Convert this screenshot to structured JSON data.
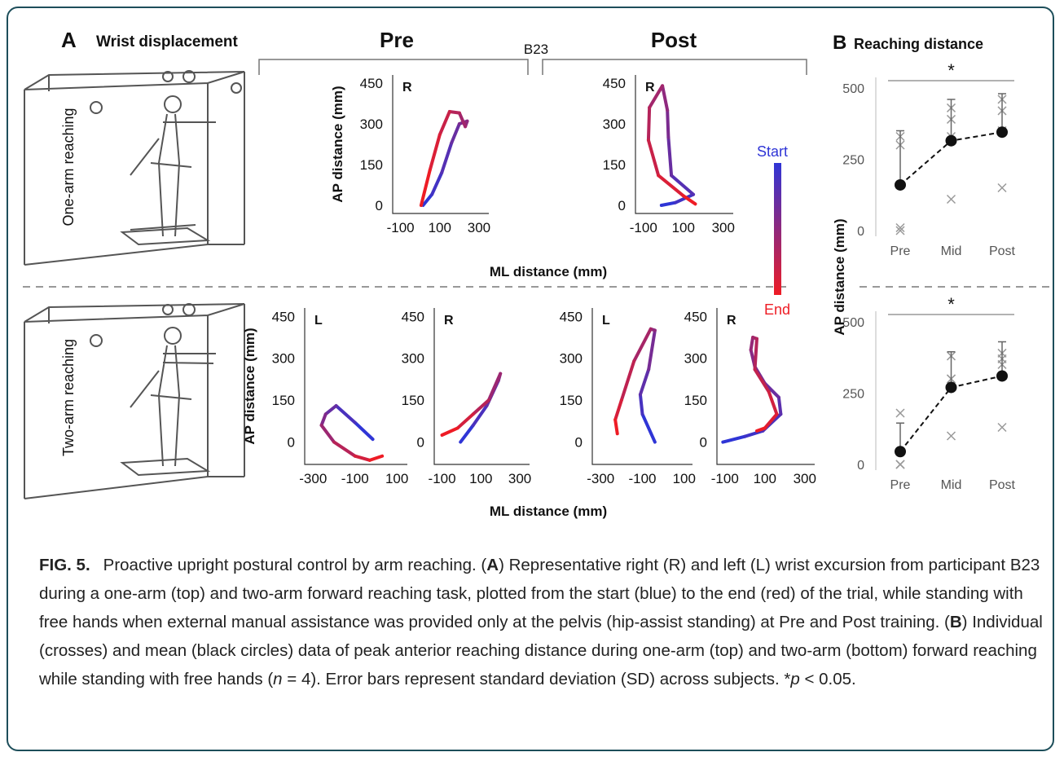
{
  "figure": {
    "panel_a": {
      "letter": "A",
      "title": "Wrist displacement",
      "pre": "Pre",
      "participant": "B23",
      "post": "Post",
      "rows": [
        {
          "label": "One-arm reaching",
          "xlabel": "ML distance (mm)"
        },
        {
          "label": "Two-arm reaching",
          "xlabel": "ML distance (mm)"
        }
      ],
      "legend": {
        "start": "Start",
        "end": "End",
        "start_color": "#2f35d6",
        "end_color": "#ee1c25"
      }
    },
    "panel_b": {
      "letter": "B",
      "title": "Reaching distance",
      "ylabel": "AP distance (mm)"
    }
  },
  "chart_data": [
    {
      "type": "trajectory",
      "label": "R",
      "ylabel": "AP distance (mm)",
      "x": [
        15,
        60,
        110,
        160,
        200,
        240,
        230,
        200,
        150,
        100,
        50,
        5
      ],
      "values": [
        0,
        40,
        120,
        230,
        300,
        310,
        290,
        340,
        345,
        260,
        130,
        0
      ],
      "xlim": [
        -140,
        350
      ],
      "ylim": [
        -30,
        480
      ],
      "xticks": [
        -100,
        100,
        300
      ],
      "yticks": [
        0,
        150,
        300,
        450
      ]
    },
    {
      "type": "trajectory",
      "label": "R",
      "x": [
        -10,
        60,
        150,
        40,
        25,
        20,
        -5,
        -70,
        -75,
        -25,
        100,
        160
      ],
      "values": [
        0,
        10,
        40,
        110,
        250,
        350,
        440,
        360,
        240,
        110,
        35,
        5
      ],
      "xlim": [
        -140,
        350
      ],
      "ylim": [
        -30,
        480
      ],
      "xticks": [
        -100,
        100,
        300
      ],
      "yticks": [
        0,
        150,
        300,
        450
      ]
    },
    {
      "type": "trajectory",
      "label": "L",
      "ylabel": "AP distance (mm)",
      "x": [
        -15,
        -100,
        -190,
        -240,
        -260,
        -200,
        -100,
        -30,
        30
      ],
      "values": [
        10,
        70,
        130,
        100,
        60,
        0,
        -50,
        -65,
        -50
      ],
      "xlim": [
        -340,
        150
      ],
      "ylim": [
        -80,
        480
      ],
      "xticks": [
        -300,
        -100,
        100
      ],
      "yticks": [
        0,
        150,
        300,
        450
      ]
    },
    {
      "type": "trajectory",
      "label": "R",
      "x": [
        -5,
        60,
        130,
        190,
        200,
        140,
        60,
        -20,
        -100
      ],
      "values": [
        0,
        60,
        130,
        220,
        245,
        150,
        100,
        50,
        25
      ],
      "xlim": [
        -140,
        350
      ],
      "ylim": [
        -80,
        480
      ],
      "xticks": [
        -100,
        100,
        300
      ],
      "yticks": [
        0,
        150,
        300,
        450
      ]
    },
    {
      "type": "trajectory",
      "label": "L",
      "x": [
        -40,
        -100,
        -110,
        -70,
        -40,
        -60,
        -140,
        -200,
        -230,
        -220
      ],
      "values": [
        0,
        100,
        170,
        260,
        400,
        405,
        290,
        150,
        80,
        30
      ],
      "xlim": [
        -340,
        140
      ],
      "ylim": [
        -80,
        480
      ],
      "xticks": [
        -300,
        -100,
        100
      ],
      "yticks": [
        0,
        150,
        300,
        450
      ]
    },
    {
      "type": "trajectory",
      "label": "R",
      "x": [
        -110,
        0,
        90,
        180,
        170,
        100,
        50,
        30,
        40,
        60,
        50,
        120,
        160,
        100,
        60
      ],
      "values": [
        0,
        20,
        40,
        100,
        160,
        210,
        270,
        330,
        375,
        370,
        260,
        180,
        100,
        50,
        40
      ],
      "xlim": [
        -140,
        350
      ],
      "ylim": [
        -80,
        480
      ],
      "xticks": [
        -100,
        100,
        300
      ],
      "yticks": [
        0,
        150,
        300,
        450
      ]
    },
    {
      "type": "dot-error",
      "categories": [
        "Pre",
        "Mid",
        "Post"
      ],
      "values": [
        160,
        315,
        345
      ],
      "errors": [
        190,
        145,
        135
      ],
      "individual": [
        [
          330,
          300,
          0,
          10
        ],
        [
          430,
          390,
          330,
          110
        ],
        [
          460,
          420,
          150,
          350
        ]
      ],
      "ylim": [
        -20,
        537
      ],
      "yticks": [
        0,
        250,
        500
      ],
      "significance": "*"
    },
    {
      "type": "dot-error",
      "categories": [
        "Pre",
        "Mid",
        "Post"
      ],
      "values": [
        45,
        270,
        310
      ],
      "errors": [
        100,
        125,
        120
      ],
      "individual": [
        [
          180,
          0,
          0,
          0
        ],
        [
          380,
          300,
          100,
          300
        ],
        [
          390,
          350,
          130,
          370
        ]
      ],
      "ylim": [
        -20,
        537
      ],
      "yticks": [
        0,
        250,
        500
      ],
      "significance": "*"
    }
  ],
  "caption": {
    "label": "FIG. 5.",
    "parts": [
      "Proactive upright postural control by arm reaching. (",
      "A",
      ") Representative right (R) and left (L) wrist excursion from participant B23 during a one-arm (top) and two-arm forward reaching task, plotted from the start (blue) to the end (red) of the trial, while standing with free hands when external manual assistance was provided only at the pelvis (hip-assist standing) at Pre and Post training. (",
      "B",
      ") Individual (crosses) and mean (black circles) data of peak anterior reaching distance during one-arm (top) and two-arm (bottom) forward reaching while standing with free hands (",
      "n",
      " = 4). Error bars represent standard deviation (SD) across subjects. *",
      "p",
      " < 0.05."
    ]
  }
}
